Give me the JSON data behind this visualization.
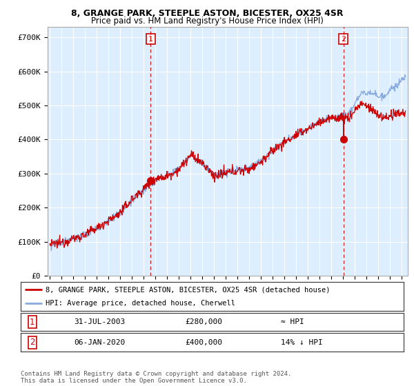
{
  "title": "8, GRANGE PARK, STEEPLE ASTON, BICESTER, OX25 4SR",
  "subtitle": "Price paid vs. HM Land Registry's House Price Index (HPI)",
  "ylim": [
    0,
    730000
  ],
  "yticks": [
    0,
    100000,
    200000,
    300000,
    400000,
    500000,
    600000,
    700000
  ],
  "ytick_labels": [
    "£0",
    "£100K",
    "£200K",
    "£300K",
    "£400K",
    "£500K",
    "£600K",
    "£700K"
  ],
  "xlim_start": 1994.8,
  "xlim_end": 2025.5,
  "background_color": "#ffffff",
  "plot_bg_color": "#ddeeff",
  "grid_color": "#ffffff",
  "sale1_year": 2003.58,
  "sale1_price": 280000,
  "sale1_label": "1",
  "sale1_date": "31-JUL-2003",
  "sale1_hpi_note": "≈ HPI",
  "sale2_year": 2020.02,
  "sale2_price": 400000,
  "sale2_label": "2",
  "sale2_date": "06-JAN-2020",
  "sale2_hpi_note": "14% ↓ HPI",
  "legend_line1": "8, GRANGE PARK, STEEPLE ASTON, BICESTER, OX25 4SR (detached house)",
  "legend_line2": "HPI: Average price, detached house, Cherwell",
  "footer": "Contains HM Land Registry data © Crown copyright and database right 2024.\nThis data is licensed under the Open Government Licence v3.0.",
  "red_line_color": "#cc0000",
  "blue_line_color": "#88aadd",
  "marker_color": "#cc0000",
  "title_fontsize": 9,
  "subtitle_fontsize": 8.5
}
